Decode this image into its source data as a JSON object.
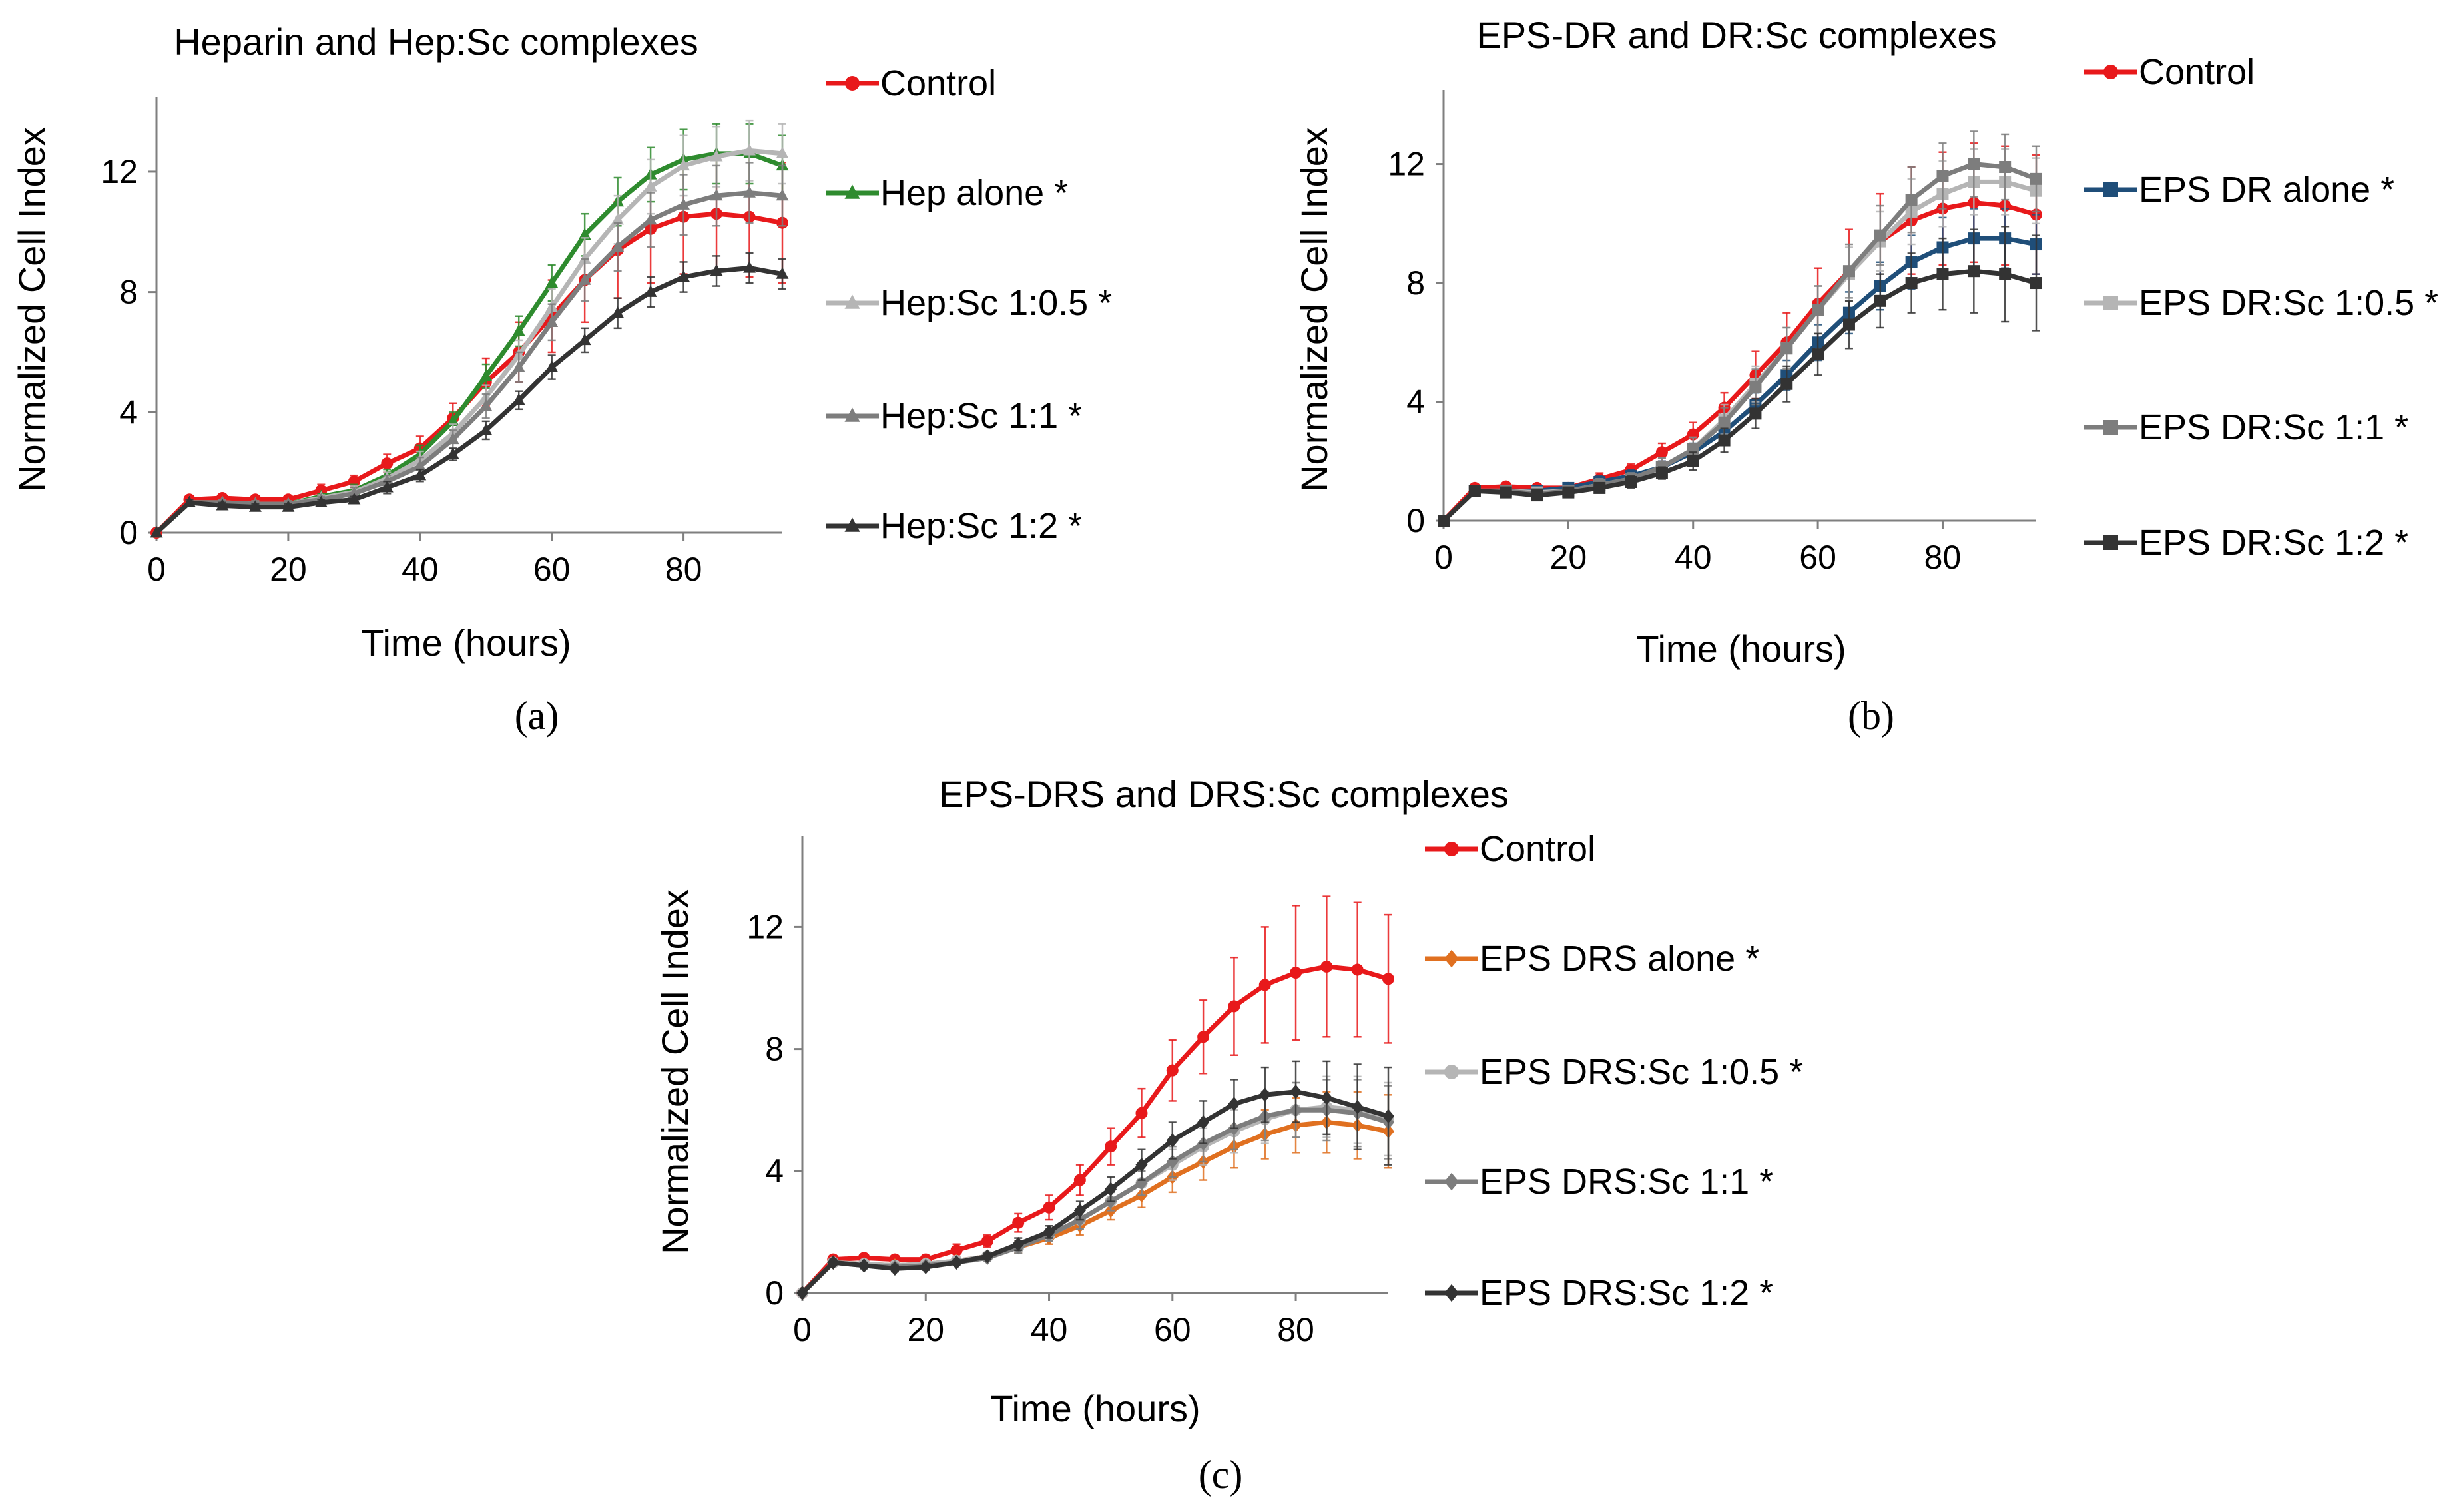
{
  "chart_data": [
    {
      "id": "a",
      "type": "line",
      "title": "Heparin and Hep:Sc complexes",
      "panel_label": "(a)",
      "xlabel": "Time (hours)",
      "ylabel": "Normalized Cell Index",
      "xlim": [
        0,
        95
      ],
      "ylim": [
        0,
        14.5
      ],
      "xticks": [
        0,
        20,
        40,
        60,
        80
      ],
      "yticks": [
        0,
        4,
        8,
        12
      ],
      "grid": false,
      "legend_position": "right",
      "x": [
        0,
        5,
        10,
        15,
        20,
        25,
        30,
        35,
        40,
        45,
        50,
        55,
        60,
        65,
        70,
        75,
        80,
        85,
        90,
        95
      ],
      "series": [
        {
          "name": "Control",
          "color": "#e8191b",
          "marker": "circle",
          "values": [
            0,
            1.1,
            1.15,
            1.1,
            1.1,
            1.4,
            1.7,
            2.3,
            2.8,
            3.8,
            5.0,
            6.0,
            7.2,
            8.4,
            9.4,
            10.1,
            10.5,
            10.6,
            10.5,
            10.3
          ],
          "errors": [
            0,
            0.1,
            0.1,
            0.1,
            0.1,
            0.2,
            0.2,
            0.3,
            0.4,
            0.5,
            0.8,
            1.0,
            1.2,
            1.4,
            1.6,
            1.8,
            1.9,
            2.0,
            2.0,
            2.0
          ]
        },
        {
          "name": "Hep alone *",
          "color": "#2e8b2e",
          "marker": "triangle",
          "values": [
            0,
            1.0,
            1.0,
            0.95,
            0.95,
            1.2,
            1.4,
            1.9,
            2.6,
            3.7,
            5.2,
            6.7,
            8.3,
            9.9,
            11.0,
            11.9,
            12.4,
            12.6,
            12.6,
            12.2
          ],
          "errors": [
            0,
            0.1,
            0.1,
            0.1,
            0.1,
            0.1,
            0.2,
            0.2,
            0.3,
            0.3,
            0.4,
            0.5,
            0.6,
            0.7,
            0.8,
            0.9,
            1.0,
            1.0,
            1.0,
            1.0
          ]
        },
        {
          "name": "Hep:Sc 1:0.5 *",
          "color": "#b5b5b5",
          "marker": "triangle",
          "values": [
            0,
            1.0,
            1.0,
            0.95,
            0.95,
            1.15,
            1.35,
            1.8,
            2.4,
            3.3,
            4.5,
            5.9,
            7.5,
            9.1,
            10.4,
            11.5,
            12.2,
            12.5,
            12.7,
            12.6
          ],
          "errors": [
            0,
            0.1,
            0.1,
            0.1,
            0.1,
            0.1,
            0.2,
            0.2,
            0.3,
            0.3,
            0.4,
            0.5,
            0.6,
            0.7,
            0.8,
            0.9,
            1.0,
            1.0,
            1.0,
            1.0
          ]
        },
        {
          "name": "Hep:Sc 1:1 *",
          "color": "#7d7d7d",
          "marker": "triangle",
          "values": [
            0,
            1.0,
            1.0,
            0.95,
            0.95,
            1.1,
            1.3,
            1.7,
            2.2,
            3.1,
            4.2,
            5.5,
            7.0,
            8.4,
            9.5,
            10.4,
            10.9,
            11.2,
            11.3,
            11.2
          ],
          "errors": [
            0,
            0.1,
            0.1,
            0.1,
            0.1,
            0.1,
            0.2,
            0.2,
            0.3,
            0.3,
            0.4,
            0.5,
            0.6,
            0.7,
            0.8,
            0.9,
            1.0,
            1.0,
            1.0,
            1.0
          ]
        },
        {
          "name": "Hep:Sc 1:2 *",
          "color": "#333333",
          "marker": "triangle",
          "values": [
            0,
            1.0,
            0.9,
            0.85,
            0.85,
            1.0,
            1.1,
            1.5,
            1.9,
            2.6,
            3.4,
            4.4,
            5.5,
            6.4,
            7.3,
            8.0,
            8.5,
            8.7,
            8.8,
            8.6
          ],
          "errors": [
            0,
            0.1,
            0.1,
            0.1,
            0.1,
            0.1,
            0.1,
            0.2,
            0.2,
            0.2,
            0.3,
            0.3,
            0.4,
            0.4,
            0.5,
            0.5,
            0.5,
            0.5,
            0.5,
            0.5
          ]
        }
      ]
    },
    {
      "id": "b",
      "type": "line",
      "title": "EPS-DR and DR:Sc complexes",
      "panel_label": "(b)",
      "xlabel": "Time (hours)",
      "ylabel": "Normalized Cell Index",
      "xlim": [
        0,
        95
      ],
      "ylim": [
        0,
        14.5
      ],
      "xticks": [
        0,
        20,
        40,
        60,
        80
      ],
      "yticks": [
        0,
        4,
        8,
        12
      ],
      "grid": false,
      "legend_position": "right",
      "x": [
        0,
        5,
        10,
        15,
        20,
        25,
        30,
        35,
        40,
        45,
        50,
        55,
        60,
        65,
        70,
        75,
        80,
        85,
        90,
        95
      ],
      "series": [
        {
          "name": "Control",
          "color": "#e8191b",
          "marker": "circle",
          "values": [
            0,
            1.1,
            1.15,
            1.1,
            1.1,
            1.4,
            1.7,
            2.3,
            2.9,
            3.8,
            4.9,
            6.0,
            7.3,
            8.4,
            9.4,
            10.1,
            10.5,
            10.7,
            10.6,
            10.3
          ],
          "errors": [
            0,
            0.1,
            0.1,
            0.1,
            0.1,
            0.2,
            0.2,
            0.3,
            0.4,
            0.5,
            0.8,
            1.0,
            1.2,
            1.4,
            1.6,
            1.8,
            1.9,
            2.0,
            2.0,
            2.0
          ]
        },
        {
          "name": "EPS DR alone *",
          "color": "#1f4e79",
          "marker": "square",
          "values": [
            0,
            1.0,
            1.0,
            1.0,
            1.1,
            1.3,
            1.5,
            1.8,
            2.3,
            3.0,
            3.9,
            4.9,
            6.0,
            7.0,
            7.9,
            8.7,
            9.2,
            9.5,
            9.5,
            9.3
          ],
          "errors": [
            0,
            0.1,
            0.1,
            0.1,
            0.1,
            0.2,
            0.2,
            0.2,
            0.3,
            0.3,
            0.4,
            0.5,
            0.6,
            0.7,
            0.8,
            0.9,
            1.0,
            1.0,
            1.0,
            1.0
          ]
        },
        {
          "name": "EPS DR:Sc 1:0.5 *",
          "color": "#b5b5b5",
          "marker": "square",
          "values": [
            0,
            1.0,
            1.0,
            0.95,
            1.0,
            1.2,
            1.4,
            1.8,
            2.4,
            3.4,
            4.6,
            5.8,
            7.1,
            8.3,
            9.4,
            10.4,
            11.0,
            11.4,
            11.4,
            11.1
          ],
          "errors": [
            0,
            0.1,
            0.1,
            0.1,
            0.1,
            0.2,
            0.2,
            0.3,
            0.4,
            0.5,
            0.6,
            0.7,
            0.8,
            0.9,
            1.0,
            1.1,
            1.1,
            1.1,
            1.1,
            1.1
          ]
        },
        {
          "name": "EPS DR:Sc 1:1 *",
          "color": "#7d7d7d",
          "marker": "square",
          "values": [
            0,
            1.0,
            1.0,
            0.9,
            1.0,
            1.2,
            1.4,
            1.8,
            2.4,
            3.3,
            4.5,
            5.8,
            7.1,
            8.4,
            9.6,
            10.8,
            11.6,
            12.0,
            11.9,
            11.5
          ],
          "errors": [
            0,
            0.1,
            0.1,
            0.1,
            0.1,
            0.2,
            0.2,
            0.3,
            0.4,
            0.5,
            0.6,
            0.7,
            0.8,
            0.9,
            1.0,
            1.1,
            1.1,
            1.1,
            1.1,
            1.1
          ]
        },
        {
          "name": "EPS DR:Sc 1:2 *",
          "color": "#333333",
          "marker": "square",
          "values": [
            0,
            1.0,
            0.95,
            0.85,
            0.95,
            1.1,
            1.3,
            1.6,
            2.0,
            2.7,
            3.6,
            4.6,
            5.6,
            6.6,
            7.4,
            8.0,
            8.3,
            8.4,
            8.3,
            8.0
          ],
          "errors": [
            0,
            0.1,
            0.1,
            0.1,
            0.1,
            0.1,
            0.2,
            0.2,
            0.3,
            0.4,
            0.5,
            0.6,
            0.7,
            0.8,
            0.9,
            1.0,
            1.2,
            1.4,
            1.6,
            1.6
          ]
        }
      ]
    },
    {
      "id": "c",
      "type": "line",
      "title": "EPS-DRS and DRS:Sc complexes",
      "panel_label": "(c)",
      "xlabel": "Time (hours)",
      "ylabel": "Normalized Cell Index",
      "xlim": [
        0,
        95
      ],
      "ylim": [
        0,
        15
      ],
      "xticks": [
        0,
        20,
        40,
        60,
        80
      ],
      "yticks": [
        0,
        4,
        8,
        12
      ],
      "grid": false,
      "legend_position": "right",
      "x": [
        0,
        5,
        10,
        15,
        20,
        25,
        30,
        35,
        40,
        45,
        50,
        55,
        60,
        65,
        70,
        75,
        80,
        85,
        90,
        95
      ],
      "series": [
        {
          "name": "Control",
          "color": "#e8191b",
          "marker": "circle",
          "values": [
            0,
            1.1,
            1.15,
            1.1,
            1.1,
            1.4,
            1.7,
            2.3,
            2.8,
            3.7,
            4.8,
            5.9,
            7.3,
            8.4,
            9.4,
            10.1,
            10.5,
            10.7,
            10.6,
            10.3
          ],
          "errors": [
            0,
            0.1,
            0.1,
            0.1,
            0.1,
            0.2,
            0.2,
            0.3,
            0.4,
            0.5,
            0.6,
            0.8,
            1.0,
            1.2,
            1.6,
            1.9,
            2.2,
            2.3,
            2.2,
            2.1
          ]
        },
        {
          "name": "EPS DRS alone *",
          "color": "#e07020",
          "marker": "diamond",
          "values": [
            0,
            1.0,
            0.95,
            0.9,
            0.95,
            1.05,
            1.2,
            1.5,
            1.8,
            2.2,
            2.7,
            3.2,
            3.8,
            4.3,
            4.8,
            5.2,
            5.5,
            5.6,
            5.5,
            5.3
          ],
          "errors": [
            0,
            0.1,
            0.1,
            0.1,
            0.1,
            0.1,
            0.1,
            0.2,
            0.2,
            0.3,
            0.3,
            0.4,
            0.5,
            0.6,
            0.7,
            0.8,
            0.9,
            1.0,
            1.1,
            1.2
          ]
        },
        {
          "name": "EPS DRS:Sc 1:0.5 *",
          "color": "#b5b5b5",
          "marker": "circle",
          "values": [
            0,
            1.0,
            0.95,
            0.9,
            0.95,
            1.05,
            1.2,
            1.5,
            1.9,
            2.4,
            3.0,
            3.6,
            4.2,
            4.8,
            5.3,
            5.7,
            6.0,
            6.1,
            6.0,
            5.7
          ],
          "errors": [
            0,
            0.1,
            0.1,
            0.1,
            0.1,
            0.1,
            0.1,
            0.2,
            0.2,
            0.3,
            0.3,
            0.4,
            0.5,
            0.6,
            0.7,
            0.8,
            0.9,
            1.0,
            1.1,
            1.2
          ]
        },
        {
          "name": "EPS DRS:Sc 1:1 *",
          "color": "#7d7d7d",
          "marker": "diamond",
          "values": [
            0,
            1.0,
            0.9,
            0.85,
            0.9,
            1.0,
            1.15,
            1.5,
            1.9,
            2.4,
            3.0,
            3.6,
            4.3,
            4.9,
            5.4,
            5.8,
            6.0,
            6.0,
            5.9,
            5.6
          ],
          "errors": [
            0,
            0.1,
            0.1,
            0.1,
            0.1,
            0.1,
            0.1,
            0.2,
            0.2,
            0.3,
            0.3,
            0.4,
            0.5,
            0.6,
            0.7,
            0.8,
            0.9,
            1.0,
            1.1,
            1.2
          ]
        },
        {
          "name": "EPS DRS:Sc 1:2 *",
          "color": "#333333",
          "marker": "diamond",
          "values": [
            0,
            1.0,
            0.9,
            0.8,
            0.85,
            1.0,
            1.2,
            1.6,
            2.0,
            2.7,
            3.4,
            4.2,
            5.0,
            5.6,
            6.2,
            6.5,
            6.6,
            6.4,
            6.1,
            5.8
          ],
          "errors": [
            0,
            0.1,
            0.1,
            0.1,
            0.1,
            0.1,
            0.1,
            0.2,
            0.2,
            0.3,
            0.4,
            0.5,
            0.6,
            0.7,
            0.8,
            0.9,
            1.0,
            1.2,
            1.4,
            1.6
          ]
        }
      ]
    }
  ]
}
